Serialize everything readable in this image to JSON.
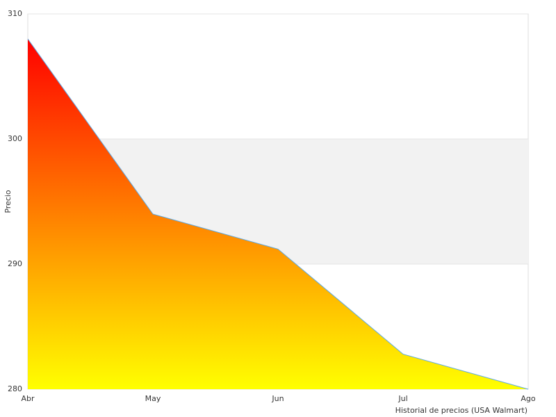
{
  "chart_data": {
    "type": "area",
    "categories": [
      "Abr",
      "May",
      "Jun",
      "Jul",
      "Ago"
    ],
    "series": [
      {
        "name": "Precio",
        "color": "#5aa9e6",
        "values": [
          308,
          294,
          291.2,
          282.8,
          280
        ]
      }
    ],
    "gradient": [
      "#ff0000",
      "#ffff00"
    ],
    "ylabel": "Precio",
    "xlabel": "Historial de precios (USA Walmart)",
    "ylim": [
      280,
      310
    ],
    "yticks": [
      280,
      290,
      300,
      310
    ],
    "bands": true
  }
}
